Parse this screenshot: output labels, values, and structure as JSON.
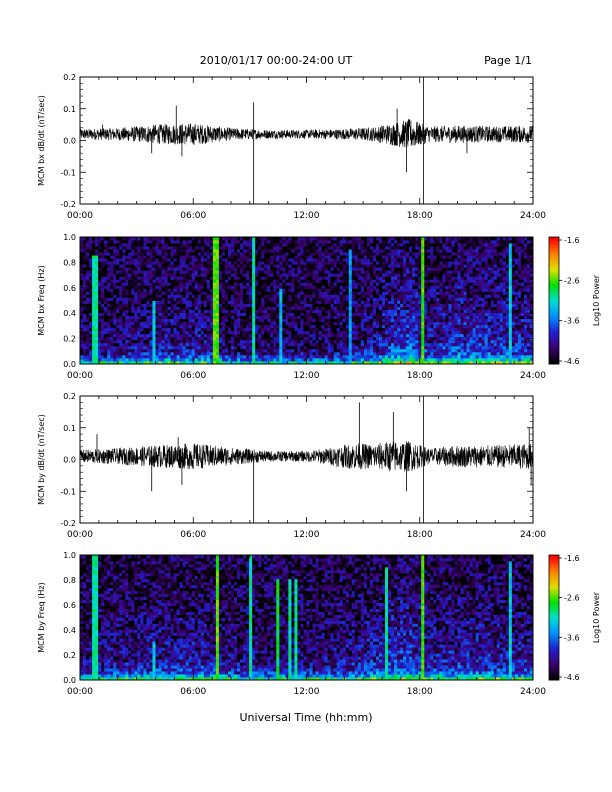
{
  "header": {
    "title": "2010/01/17  00:00-24:00 UT",
    "page": "Page 1/1"
  },
  "x_axis_title": "Universal Time (hh:mm)",
  "colors": {
    "colormap": [
      "#000000",
      "#3c006e",
      "#2020d0",
      "#0090ff",
      "#00e0d0",
      "#00e000",
      "#e0e000",
      "#ff8000",
      "#ff0000"
    ],
    "trace": "#000000"
  },
  "chart_data": [
    {
      "type": "line",
      "ylabel": "MCM bx dB/dt (nT/sec)",
      "xlim": [
        0,
        24
      ],
      "ylim": [
        -0.2,
        0.2
      ],
      "xticks": [
        "00:00",
        "06:00",
        "12:00",
        "18:00",
        "24:00"
      ],
      "yticks": [
        "-0.2",
        "-0.1",
        "0.0",
        "0.1",
        "0.2"
      ],
      "baseline": 0.02,
      "noise_envelope": {
        "x": [
          0,
          2,
          4,
          6,
          8,
          10,
          12,
          14,
          15.5,
          16.5,
          17.5,
          18.5,
          20,
          22,
          24
        ],
        "amp": [
          0.012,
          0.014,
          0.022,
          0.025,
          0.014,
          0.01,
          0.01,
          0.012,
          0.016,
          0.025,
          0.035,
          0.018,
          0.02,
          0.018,
          0.02
        ]
      },
      "spikes": [
        {
          "x": 1.2,
          "y": 0.05
        },
        {
          "x": 3.8,
          "y": -0.04
        },
        {
          "x": 5.1,
          "y": 0.11
        },
        {
          "x": 5.4,
          "y": -0.05
        },
        {
          "x": 9.2,
          "y": 0.12
        },
        {
          "x": 9.2,
          "y": -0.2
        },
        {
          "x": 16.8,
          "y": 0.1
        },
        {
          "x": 17.3,
          "y": -0.1
        },
        {
          "x": 18.2,
          "y": 0.2
        },
        {
          "x": 18.2,
          "y": -0.2
        },
        {
          "x": 20.5,
          "y": -0.04
        }
      ]
    },
    {
      "type": "heatmap",
      "ylabel": "MCM bx Freq (Hz)",
      "xlim": [
        0,
        24
      ],
      "ylim": [
        0,
        1.0
      ],
      "xticks": [
        "00:00",
        "06:00",
        "12:00",
        "18:00",
        "24:00"
      ],
      "yticks": [
        "0.0",
        "0.2",
        "0.4",
        "0.6",
        "0.8",
        "1.0"
      ],
      "colorbar_label": "Log10 Power",
      "colorbar_ticks": [
        "-1.6",
        "-2.6",
        "-3.6",
        "-4.6"
      ],
      "clim": [
        -4.6,
        -1.6
      ],
      "activity_envelope": {
        "x": [
          0,
          2,
          4,
          6,
          8,
          10,
          12,
          14,
          15.5,
          16.5,
          17.5,
          18.5,
          20,
          22,
          24
        ],
        "level": [
          0.15,
          0.18,
          0.3,
          0.32,
          0.18,
          0.12,
          0.12,
          0.2,
          0.3,
          0.5,
          0.6,
          0.35,
          0.5,
          0.45,
          0.4
        ]
      },
      "vertical_lines": [
        {
          "x": 0.8,
          "top": 0.85,
          "power": -3.0
        },
        {
          "x": 3.9,
          "top": 0.5,
          "power": -3.2
        },
        {
          "x": 7.2,
          "top": 1.0,
          "power": -2.6
        },
        {
          "x": 9.2,
          "top": 1.0,
          "power": -3.0
        },
        {
          "x": 10.7,
          "top": 0.6,
          "power": -3.3
        },
        {
          "x": 14.3,
          "top": 0.9,
          "power": -3.4
        },
        {
          "x": 18.2,
          "top": 1.0,
          "power": -2.6
        },
        {
          "x": 22.8,
          "top": 0.95,
          "power": -3.2
        }
      ]
    },
    {
      "type": "line",
      "ylabel": "MCM by dB/dt (nT/sec)",
      "xlim": [
        0,
        24
      ],
      "ylim": [
        -0.2,
        0.2
      ],
      "xticks": [
        "00:00",
        "06:00",
        "12:00",
        "18:00",
        "24:00"
      ],
      "yticks": [
        "-0.2",
        "-0.1",
        "0.0",
        "0.1",
        "0.2"
      ],
      "baseline": 0.01,
      "noise_envelope": {
        "x": [
          0,
          2,
          4,
          6,
          8,
          10,
          12,
          13,
          14.5,
          15.5,
          16.5,
          17.5,
          18.5,
          20,
          22,
          24
        ],
        "amp": [
          0.015,
          0.018,
          0.025,
          0.03,
          0.02,
          0.012,
          0.012,
          0.018,
          0.03,
          0.028,
          0.035,
          0.035,
          0.018,
          0.025,
          0.025,
          0.03
        ]
      },
      "spikes": [
        {
          "x": 0.9,
          "y": 0.08
        },
        {
          "x": 3.8,
          "y": -0.1
        },
        {
          "x": 5.2,
          "y": 0.07
        },
        {
          "x": 5.4,
          "y": -0.08
        },
        {
          "x": 9.2,
          "y": -0.2
        },
        {
          "x": 14.8,
          "y": 0.18
        },
        {
          "x": 16.6,
          "y": 0.15
        },
        {
          "x": 17.3,
          "y": -0.1
        },
        {
          "x": 18.2,
          "y": 0.2
        },
        {
          "x": 18.2,
          "y": -0.2
        },
        {
          "x": 23.8,
          "y": 0.1
        },
        {
          "x": 23.9,
          "y": -0.08
        }
      ]
    },
    {
      "type": "heatmap",
      "ylabel": "MCM by Freq (Hz)",
      "xlim": [
        0,
        24
      ],
      "ylim": [
        0,
        1.0
      ],
      "xticks": [
        "00:00",
        "06:00",
        "12:00",
        "18:00",
        "24:00"
      ],
      "yticks": [
        "0.0",
        "0.2",
        "0.4",
        "0.6",
        "0.8",
        "1.0"
      ],
      "colorbar_label": "Log10 Power",
      "colorbar_ticks": [
        "-1.6",
        "-2.6",
        "-3.6",
        "-4.6"
      ],
      "clim": [
        -4.6,
        -1.6
      ],
      "activity_envelope": {
        "x": [
          0,
          2,
          4,
          6,
          8,
          10,
          12,
          14,
          15.5,
          16.5,
          17.5,
          18.5,
          20,
          22,
          24
        ],
        "level": [
          0.25,
          0.28,
          0.35,
          0.38,
          0.25,
          0.2,
          0.2,
          0.3,
          0.38,
          0.5,
          0.55,
          0.35,
          0.4,
          0.38,
          0.35
        ]
      },
      "vertical_lines": [
        {
          "x": 0.8,
          "top": 1.0,
          "power": -3.0
        },
        {
          "x": 3.9,
          "top": 0.3,
          "power": -3.2
        },
        {
          "x": 7.3,
          "top": 1.0,
          "power": -2.6
        },
        {
          "x": 9.0,
          "top": 1.0,
          "power": -3.0
        },
        {
          "x": 10.5,
          "top": 0.8,
          "power": -2.8
        },
        {
          "x": 11.1,
          "top": 0.8,
          "power": -3.0
        },
        {
          "x": 11.5,
          "top": 0.8,
          "power": -3.0
        },
        {
          "x": 16.3,
          "top": 0.9,
          "power": -3.0
        },
        {
          "x": 18.2,
          "top": 1.0,
          "power": -2.6
        },
        {
          "x": 22.8,
          "top": 0.95,
          "power": -3.2
        }
      ]
    }
  ]
}
